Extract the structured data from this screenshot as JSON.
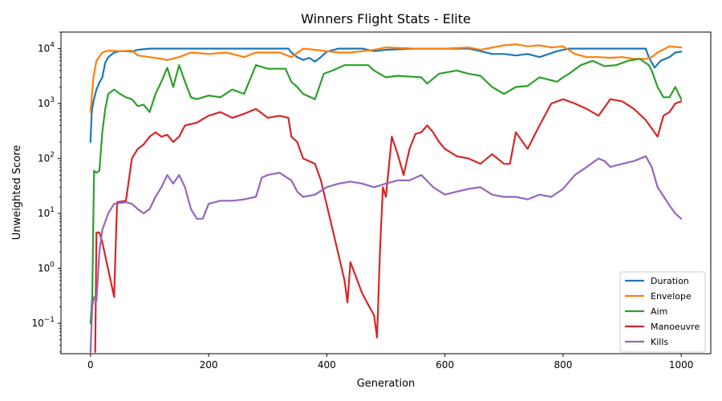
{
  "chart_data": {
    "type": "line",
    "title": "Winners Flight Stats - Elite",
    "xlabel": "Generation",
    "ylabel": "Unweighted Score",
    "xlim": [
      -50,
      1050
    ],
    "ylim": [
      0.028,
      20000
    ],
    "yscale": "log",
    "x_ticks": [
      0,
      200,
      400,
      600,
      800,
      1000
    ],
    "x_tick_labels": [
      "0",
      "200",
      "400",
      "600",
      "800",
      "1000"
    ],
    "y_ticks": [
      0.1,
      1,
      10,
      100,
      1000,
      10000
    ],
    "y_tick_bases": [
      "10",
      "10",
      "10",
      "10",
      "10",
      "10"
    ],
    "y_tick_exps": [
      "−1",
      "0",
      "1",
      "2",
      "3",
      "4"
    ],
    "grid": false,
    "legend_position": "lower right",
    "series": [
      {
        "name": "Duration",
        "color": "#1f77b4",
        "points": [
          [
            0,
            200
          ],
          [
            2,
            700
          ],
          [
            5,
            1100
          ],
          [
            10,
            1800
          ],
          [
            15,
            2400
          ],
          [
            20,
            3000
          ],
          [
            25,
            5500
          ],
          [
            30,
            7000
          ],
          [
            40,
            8500
          ],
          [
            50,
            9000
          ],
          [
            60,
            9000
          ],
          [
            70,
            8800
          ],
          [
            80,
            9500
          ],
          [
            100,
            10000
          ],
          [
            200,
            10000
          ],
          [
            300,
            10000
          ],
          [
            335,
            10000
          ],
          [
            340,
            8500
          ],
          [
            350,
            7000
          ],
          [
            360,
            6200
          ],
          [
            370,
            6800
          ],
          [
            380,
            5800
          ],
          [
            390,
            7000
          ],
          [
            400,
            8800
          ],
          [
            420,
            10000
          ],
          [
            460,
            10000
          ],
          [
            480,
            9000
          ],
          [
            500,
            9500
          ],
          [
            550,
            10000
          ],
          [
            640,
            10000
          ],
          [
            660,
            9000
          ],
          [
            680,
            8000
          ],
          [
            700,
            8000
          ],
          [
            720,
            7500
          ],
          [
            740,
            8000
          ],
          [
            760,
            7000
          ],
          [
            790,
            9000
          ],
          [
            810,
            10000
          ],
          [
            900,
            10000
          ],
          [
            940,
            10000
          ],
          [
            945,
            7000
          ],
          [
            955,
            4500
          ],
          [
            965,
            6000
          ],
          [
            980,
            7000
          ],
          [
            990,
            8500
          ],
          [
            1000,
            8800
          ]
        ]
      },
      {
        "name": "Envelope",
        "color": "#ff7f0e",
        "points": [
          [
            0,
            700
          ],
          [
            5,
            3000
          ],
          [
            10,
            6000
          ],
          [
            20,
            8500
          ],
          [
            30,
            9200
          ],
          [
            50,
            9000
          ],
          [
            70,
            9200
          ],
          [
            80,
            7500
          ],
          [
            100,
            7000
          ],
          [
            120,
            6500
          ],
          [
            130,
            6200
          ],
          [
            150,
            7000
          ],
          [
            170,
            8500
          ],
          [
            200,
            8000
          ],
          [
            230,
            8500
          ],
          [
            250,
            7500
          ],
          [
            260,
            7000
          ],
          [
            280,
            8500
          ],
          [
            320,
            8500
          ],
          [
            340,
            7000
          ],
          [
            360,
            10000
          ],
          [
            380,
            9500
          ],
          [
            400,
            9000
          ],
          [
            420,
            8500
          ],
          [
            440,
            8500
          ],
          [
            460,
            9000
          ],
          [
            480,
            9500
          ],
          [
            500,
            10500
          ],
          [
            550,
            10000
          ],
          [
            600,
            10000
          ],
          [
            640,
            10500
          ],
          [
            660,
            9500
          ],
          [
            700,
            11500
          ],
          [
            720,
            12000
          ],
          [
            740,
            11000
          ],
          [
            760,
            11500
          ],
          [
            780,
            10500
          ],
          [
            800,
            11000
          ],
          [
            820,
            8000
          ],
          [
            840,
            7000
          ],
          [
            860,
            7000
          ],
          [
            880,
            6800
          ],
          [
            900,
            7000
          ],
          [
            920,
            6500
          ],
          [
            940,
            6500
          ],
          [
            950,
            7000
          ],
          [
            960,
            8500
          ],
          [
            980,
            11000
          ],
          [
            1000,
            10500
          ]
        ]
      },
      {
        "name": "Aim",
        "color": "#2ca02c",
        "points": [
          [
            0,
            0.1
          ],
          [
            3,
            0.3
          ],
          [
            6,
            60
          ],
          [
            10,
            55
          ],
          [
            15,
            60
          ],
          [
            20,
            300
          ],
          [
            25,
            800
          ],
          [
            30,
            1500
          ],
          [
            40,
            1800
          ],
          [
            50,
            1500
          ],
          [
            60,
            1300
          ],
          [
            70,
            1200
          ],
          [
            80,
            900
          ],
          [
            90,
            950
          ],
          [
            100,
            700
          ],
          [
            110,
            1500
          ],
          [
            120,
            2500
          ],
          [
            130,
            4500
          ],
          [
            140,
            2000
          ],
          [
            150,
            5000
          ],
          [
            160,
            2500
          ],
          [
            170,
            1300
          ],
          [
            180,
            1200
          ],
          [
            200,
            1400
          ],
          [
            220,
            1300
          ],
          [
            240,
            1800
          ],
          [
            260,
            1500
          ],
          [
            280,
            5000
          ],
          [
            300,
            4300
          ],
          [
            330,
            4300
          ],
          [
            340,
            2500
          ],
          [
            350,
            2000
          ],
          [
            360,
            1500
          ],
          [
            380,
            1200
          ],
          [
            395,
            3500
          ],
          [
            410,
            4000
          ],
          [
            430,
            5000
          ],
          [
            470,
            5000
          ],
          [
            480,
            4000
          ],
          [
            500,
            3000
          ],
          [
            520,
            3200
          ],
          [
            560,
            3000
          ],
          [
            570,
            2300
          ],
          [
            590,
            3500
          ],
          [
            620,
            4000
          ],
          [
            640,
            3500
          ],
          [
            660,
            3200
          ],
          [
            680,
            2000
          ],
          [
            700,
            1500
          ],
          [
            720,
            2000
          ],
          [
            740,
            2100
          ],
          [
            760,
            3000
          ],
          [
            790,
            2500
          ],
          [
            800,
            3000
          ],
          [
            810,
            3500
          ],
          [
            830,
            5000
          ],
          [
            850,
            6000
          ],
          [
            870,
            4800
          ],
          [
            890,
            5000
          ],
          [
            910,
            6000
          ],
          [
            930,
            6500
          ],
          [
            945,
            5000
          ],
          [
            950,
            4000
          ],
          [
            960,
            2000
          ],
          [
            970,
            1300
          ],
          [
            980,
            1300
          ],
          [
            990,
            2000
          ],
          [
            1000,
            1200
          ]
        ]
      },
      {
        "name": "Manoeuvre",
        "color": "#d62728",
        "points": [
          [
            8,
            0.03
          ],
          [
            10,
            4.5
          ],
          [
            15,
            4.5
          ],
          [
            20,
            3
          ],
          [
            40,
            0.3
          ],
          [
            42,
            1.5
          ],
          [
            45,
            16
          ],
          [
            60,
            17
          ],
          [
            70,
            100
          ],
          [
            80,
            150
          ],
          [
            90,
            180
          ],
          [
            100,
            250
          ],
          [
            110,
            300
          ],
          [
            120,
            250
          ],
          [
            130,
            270
          ],
          [
            140,
            200
          ],
          [
            150,
            250
          ],
          [
            160,
            400
          ],
          [
            180,
            450
          ],
          [
            200,
            600
          ],
          [
            220,
            700
          ],
          [
            240,
            550
          ],
          [
            260,
            650
          ],
          [
            280,
            800
          ],
          [
            300,
            550
          ],
          [
            320,
            600
          ],
          [
            335,
            550
          ],
          [
            340,
            250
          ],
          [
            350,
            200
          ],
          [
            360,
            100
          ],
          [
            380,
            80
          ],
          [
            390,
            40
          ],
          [
            410,
            5
          ],
          [
            430,
            0.6
          ],
          [
            435,
            0.24
          ],
          [
            440,
            1.3
          ],
          [
            460,
            0.35
          ],
          [
            470,
            0.22
          ],
          [
            480,
            0.14
          ],
          [
            485,
            0.055
          ],
          [
            490,
            2
          ],
          [
            495,
            30
          ],
          [
            500,
            20
          ],
          [
            510,
            250
          ],
          [
            520,
            120
          ],
          [
            530,
            50
          ],
          [
            540,
            150
          ],
          [
            550,
            280
          ],
          [
            560,
            300
          ],
          [
            570,
            400
          ],
          [
            580,
            300
          ],
          [
            590,
            200
          ],
          [
            600,
            150
          ],
          [
            620,
            110
          ],
          [
            640,
            100
          ],
          [
            660,
            80
          ],
          [
            680,
            120
          ],
          [
            700,
            80
          ],
          [
            710,
            80
          ],
          [
            720,
            300
          ],
          [
            740,
            150
          ],
          [
            760,
            400
          ],
          [
            780,
            1000
          ],
          [
            800,
            1200
          ],
          [
            820,
            1000
          ],
          [
            840,
            800
          ],
          [
            860,
            600
          ],
          [
            880,
            1200
          ],
          [
            900,
            1100
          ],
          [
            920,
            800
          ],
          [
            940,
            500
          ],
          [
            960,
            250
          ],
          [
            970,
            600
          ],
          [
            980,
            700
          ],
          [
            990,
            1000
          ],
          [
            1000,
            1100
          ]
        ]
      },
      {
        "name": "Kills",
        "color": "#9467bd",
        "points": [
          [
            0,
            0.03
          ],
          [
            3,
            0.2
          ],
          [
            6,
            0.3
          ],
          [
            10,
            0.25
          ],
          [
            15,
            2
          ],
          [
            20,
            5
          ],
          [
            30,
            10
          ],
          [
            40,
            15
          ],
          [
            60,
            16
          ],
          [
            70,
            15
          ],
          [
            80,
            12
          ],
          [
            90,
            10
          ],
          [
            100,
            12
          ],
          [
            110,
            20
          ],
          [
            120,
            30
          ],
          [
            130,
            50
          ],
          [
            140,
            35
          ],
          [
            150,
            50
          ],
          [
            160,
            30
          ],
          [
            170,
            12
          ],
          [
            180,
            8
          ],
          [
            190,
            8
          ],
          [
            200,
            15
          ],
          [
            220,
            17
          ],
          [
            240,
            17
          ],
          [
            260,
            18
          ],
          [
            280,
            20
          ],
          [
            290,
            45
          ],
          [
            300,
            50
          ],
          [
            320,
            55
          ],
          [
            340,
            40
          ],
          [
            350,
            25
          ],
          [
            360,
            20
          ],
          [
            380,
            22
          ],
          [
            400,
            30
          ],
          [
            420,
            35
          ],
          [
            440,
            38
          ],
          [
            460,
            35
          ],
          [
            480,
            30
          ],
          [
            500,
            35
          ],
          [
            520,
            40
          ],
          [
            540,
            40
          ],
          [
            560,
            50
          ],
          [
            580,
            30
          ],
          [
            600,
            22
          ],
          [
            620,
            25
          ],
          [
            640,
            28
          ],
          [
            660,
            30
          ],
          [
            680,
            22
          ],
          [
            700,
            20
          ],
          [
            720,
            20
          ],
          [
            740,
            18
          ],
          [
            760,
            22
          ],
          [
            780,
            20
          ],
          [
            800,
            28
          ],
          [
            820,
            50
          ],
          [
            840,
            70
          ],
          [
            860,
            100
          ],
          [
            870,
            90
          ],
          [
            880,
            70
          ],
          [
            900,
            80
          ],
          [
            920,
            90
          ],
          [
            940,
            110
          ],
          [
            950,
            70
          ],
          [
            960,
            30
          ],
          [
            980,
            14
          ],
          [
            990,
            10
          ],
          [
            1000,
            8
          ]
        ]
      }
    ]
  }
}
